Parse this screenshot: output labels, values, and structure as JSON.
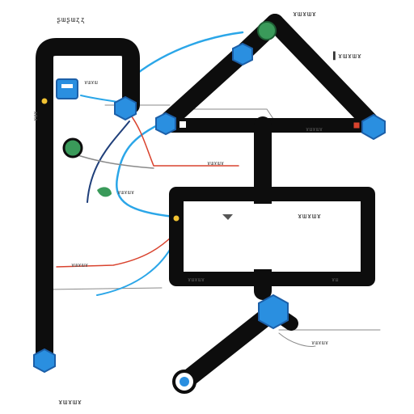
{
  "diagram": {
    "labels": {
      "top_left": "ʂɯʂɯʐʐ",
      "top_right": "ɤɯɤɯɤ",
      "right_top_node": "▌ɤɯɤɯɤ",
      "left_box": "ɤɯɤɯ",
      "mid_right": "ɤɯɤɯɤ",
      "center_mid": "ɤɯɤɯɤ",
      "green_node": "ɤɯɤɯɤ",
      "inner_box_right": "ɤɯɤɯɤ",
      "left_red": "ɤɯɤɯɤ",
      "inner_bottom": "ɤɯɤɯɤ",
      "right_bottom_small": "ɤɯ",
      "bottom_right": "ɤɯɤɯɤ",
      "bottom_left": "ɤɯɤɯɤ",
      "left_vertical": "ɤɯɤ"
    },
    "colors": {
      "track": "#0d0d0d",
      "node_blue": "#2a8fe0",
      "node_blue_dark": "#1c5fa8",
      "node_green": "#3a9a5a",
      "wire_blue": "#2ba6e8",
      "wire_red": "#d9432e",
      "wire_gray": "#8a8a8a",
      "wire_navy": "#1f3f7a"
    }
  }
}
